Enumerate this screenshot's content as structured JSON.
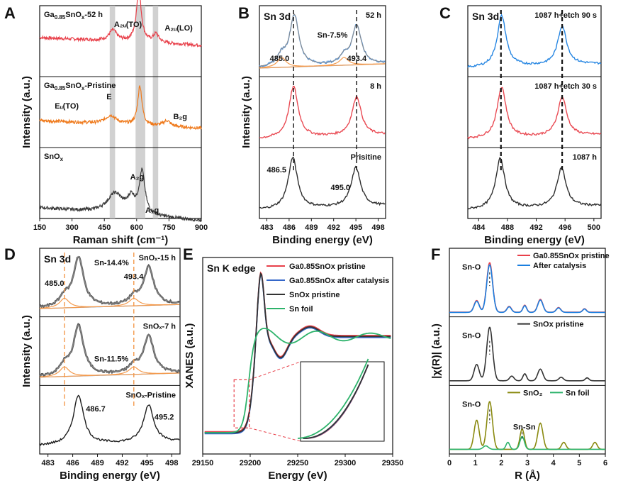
{
  "chart_data": [
    {
      "panel_letter": "A",
      "type": "line",
      "xlabel": "Raman shift (cm⁻¹)",
      "ylabel": "Intensity (a.u.)",
      "xlim": [
        150,
        900
      ],
      "xticks": [
        "150",
        "300",
        "450",
        "600",
        "750",
        "900"
      ],
      "panels": [
        {
          "label_base": "Ga",
          "label_sub": "0.85",
          "label_rest": "SnO",
          "label_sub2": "x",
          "label_tail": "-52 h",
          "color": "#e8404a",
          "base": 0.55,
          "peaks": [
            [
              490,
              22,
              0.15
            ],
            [
              610,
              14,
              0.72
            ],
            [
              690,
              16,
              0.12
            ]
          ],
          "annotations": [
            {
              "text": "A₂ᵤ(TO)",
              "x": 495,
              "y": 0.7
            },
            {
              "text": "A₂ᵤ(LO)",
              "x": 730,
              "y": 0.65
            }
          ]
        },
        {
          "label_base": "Ga",
          "label_sub": "0.85",
          "label_rest": "SnO",
          "label_sub2": "x",
          "label_tail": "-Pristine",
          "color": "#ef7a1c",
          "base": 0.38,
          "peaks": [
            [
              480,
              30,
              0.12
            ],
            [
              615,
              12,
              0.55
            ],
            [
              740,
              20,
              0.08
            ]
          ],
          "annotations": [
            {
              "text": "Eᵤ(TO)",
              "x": 220,
              "y": 0.55
            },
            {
              "text": "E",
              "x": 460,
              "y": 0.68
            },
            {
              "text": "B₂g",
              "x": 770,
              "y": 0.4
            }
          ]
        },
        {
          "label_base": "SnO",
          "label_sub": "x",
          "label_rest": "",
          "label_sub2": "",
          "label_tail": "",
          "color": "#3a3a3a",
          "base": 0.15,
          "peaks": [
            [
              500,
              45,
              0.28
            ],
            [
              575,
              20,
              0.2
            ],
            [
              625,
              16,
              0.6
            ]
          ],
          "annotations": [
            {
              "text": "A₂g",
              "x": 570,
              "y": 0.55
            },
            {
              "text": "A₁g",
              "x": 640,
              "y": 0.08
            }
          ]
        }
      ],
      "shaded_regions": [
        [
          475,
          500
        ],
        [
          595,
          640
        ],
        [
          675,
          700
        ]
      ]
    },
    {
      "panel_letter": "B",
      "type": "line",
      "title": "Sn 3d",
      "xlabel": "Binding energy (eV)",
      "ylabel": "Intensity (a.u.)",
      "xlim": [
        482,
        499
      ],
      "xticks": [
        "483",
        "486",
        "489",
        "492",
        "495",
        "498"
      ],
      "panels": [
        {
          "label": "52 h",
          "color": "#4d8fd8",
          "peak1": 486.7,
          "peak2": 495.1,
          "extra": [
            {
              "text": "485.0",
              "x": 483.4,
              "y": 0.22,
              "color": "#f39a4d"
            },
            {
              "text": "493.4",
              "x": 493.8,
              "y": 0.22,
              "color": "#f39a4d"
            },
            {
              "text": "Sn-7.5%",
              "x": 489.8,
              "y": 0.55,
              "color": "#f39a4d"
            }
          ]
        },
        {
          "label": "8 h",
          "color": "#e8404a",
          "peak1": 486.6,
          "peak2": 495.1,
          "extra": []
        },
        {
          "label": "Prisitine",
          "color": "#222222",
          "peak1": 486.5,
          "peak2": 495.0,
          "extra": [
            {
              "text": "486.5",
              "x": 483.0,
              "y": 0.65,
              "color": "#111"
            },
            {
              "text": "495.0",
              "x": 491.6,
              "y": 0.4,
              "color": "#111"
            }
          ]
        }
      ],
      "dashed_lines": [
        486.6,
        495.1
      ]
    },
    {
      "panel_letter": "C",
      "type": "line",
      "title": "Sn 3d",
      "xlabel": "Binding energy (eV)",
      "ylabel": "",
      "xlim": [
        482.5,
        501
      ],
      "xticks": [
        "484",
        "488",
        "492",
        "496",
        "500"
      ],
      "panels": [
        {
          "label": "1087 h+etch 90 s",
          "color": "#1a7fe0",
          "peak1": 487.2,
          "peak2": 495.6,
          "extra": []
        },
        {
          "label": "1087 h+etch 30 s",
          "color": "#e8404a",
          "peak1": 487.2,
          "peak2": 495.6,
          "extra": []
        },
        {
          "label": "1087 h",
          "color": "#222222",
          "peak1": 487.0,
          "peak2": 495.5,
          "extra": []
        }
      ],
      "dashed_lines": [
        487.1,
        495.6
      ]
    },
    {
      "panel_letter": "D",
      "type": "line",
      "title": "Sn 3d",
      "xlabel": "Binding energy (eV)",
      "ylabel": "Intensity (a.u.)",
      "xlim": [
        482,
        499
      ],
      "xticks": [
        "483",
        "486",
        "489",
        "492",
        "495",
        "498"
      ],
      "panels": [
        {
          "label": "SnOₓ-15 h",
          "color": "#555555",
          "peak1": 486.7,
          "peak2": 495.2,
          "extra": [
            {
              "text": "485.0",
              "x": 482.6,
              "y": 0.45,
              "color": "#f39a4d"
            },
            {
              "text": "493.4",
              "x": 492.2,
              "y": 0.55,
              "color": "#f39a4d"
            },
            {
              "text": "Sn-14.4%",
              "x": 488.6,
              "y": 0.75,
              "color": "#f39a4d"
            }
          ]
        },
        {
          "label": "SnOₓ-7 h",
          "color": "#555555",
          "peak1": 486.7,
          "peak2": 495.2,
          "extra": [
            {
              "text": "Sn-11.5%",
              "x": 488.6,
              "y": 0.35,
              "color": "#f39a4d"
            }
          ]
        },
        {
          "label": "SnOₓ-Pristine",
          "color": "#111111",
          "peak1": 486.7,
          "peak2": 495.2,
          "extra": [
            {
              "text": "486.7",
              "x": 487.6,
              "y": 0.62,
              "color": "#111"
            },
            {
              "text": "495.2",
              "x": 495.9,
              "y": 0.5,
              "color": "#111"
            }
          ]
        }
      ],
      "dashed_lines": [
        485.0,
        493.4
      ]
    },
    {
      "panel_letter": "E",
      "type": "line",
      "title": "Sn K edge",
      "xlabel": "Energy (eV)",
      "ylabel": "XANES (a.u.)",
      "xlim": [
        29150,
        29350
      ],
      "xticks": [
        "29150",
        "29200",
        "29250",
        "29300",
        "29350"
      ],
      "series": [
        {
          "name": "Ga0.85SnOx pristine",
          "color": "#e8404a"
        },
        {
          "name": "Ga0.85SnOx after catalysis",
          "color": "#3567c9"
        },
        {
          "name": "SnOx pristine",
          "color": "#333333"
        },
        {
          "name": "Sn foil",
          "color": "#2db36b"
        }
      ]
    },
    {
      "panel_letter": "F",
      "type": "line",
      "xlabel": "R (Å)",
      "ylabel": "|χ(R)| (a.u.)",
      "xlim": [
        0,
        6
      ],
      "xticks": [
        "0",
        "1",
        "2",
        "3",
        "4",
        "5",
        "6"
      ],
      "panels": [
        {
          "ann": "Sn-O",
          "legend": [
            {
              "name": "Ga0.85SnOx pristine",
              "color": "#e8404a"
            },
            {
              "name": "After catalysis",
              "color": "#1a7fe0"
            }
          ]
        },
        {
          "ann": "Sn-O",
          "legend": [
            {
              "name": "SnOx pristine",
              "color": "#333333"
            }
          ]
        },
        {
          "ann": "Sn-O",
          "ann2": "Sn-Sn",
          "legend": [
            {
              "name": "SnO₂",
              "color": "#8a8a10"
            },
            {
              "name": "Sn foil",
              "color": "#2db36b"
            }
          ]
        }
      ]
    }
  ]
}
